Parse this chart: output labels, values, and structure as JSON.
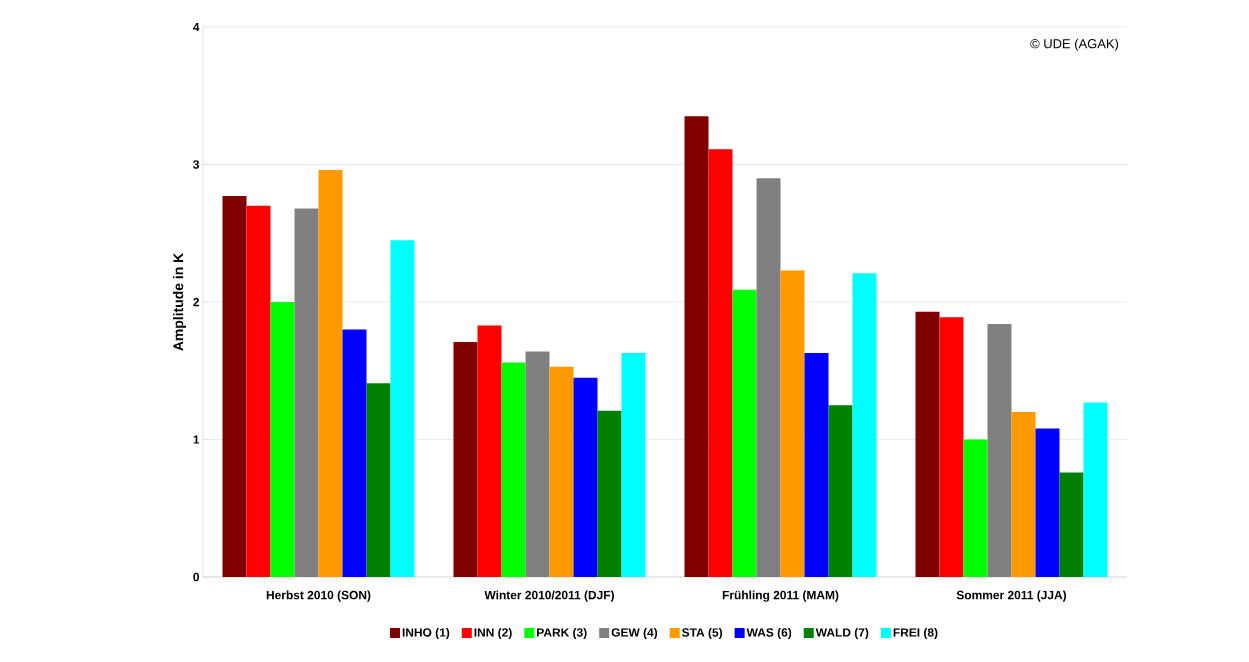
{
  "chart_data": {
    "type": "bar",
    "ylabel": "Amplitude in K",
    "categories": [
      "Herbst 2010 (SON)",
      "Winter 2010/2011 (DJF)",
      "Frühling 2011 (MAM)",
      "Sommer 2011 (JJA)"
    ],
    "series": [
      {
        "name": "INHO (1)",
        "color": "#800000",
        "values": [
          2.77,
          1.71,
          3.35,
          1.93
        ]
      },
      {
        "name": "INN (2)",
        "color": "#ff0000",
        "values": [
          2.7,
          1.83,
          3.11,
          1.89
        ]
      },
      {
        "name": "PARK (3)",
        "color": "#00ff00",
        "values": [
          2.0,
          1.56,
          2.09,
          1.0
        ]
      },
      {
        "name": "GEW (4)",
        "color": "#808080",
        "values": [
          2.68,
          1.64,
          2.9,
          1.84
        ]
      },
      {
        "name": "STA (5)",
        "color": "#ff9900",
        "values": [
          2.96,
          1.53,
          2.23,
          1.2
        ]
      },
      {
        "name": "WAS (6)",
        "color": "#0000ff",
        "values": [
          1.8,
          1.45,
          1.63,
          1.08
        ]
      },
      {
        "name": "WALD (7)",
        "color": "#008000",
        "values": [
          1.41,
          1.21,
          1.25,
          0.76
        ]
      },
      {
        "name": "FREI (8)",
        "color": "#00ffff",
        "values": [
          2.45,
          1.63,
          2.21,
          1.27
        ]
      }
    ],
    "ylim": [
      0,
      4
    ],
    "yticks": [
      0,
      1,
      2,
      3,
      4
    ],
    "grid": "y",
    "legend": "bottom",
    "annotations": [
      "© UDE (AGAK)"
    ]
  }
}
